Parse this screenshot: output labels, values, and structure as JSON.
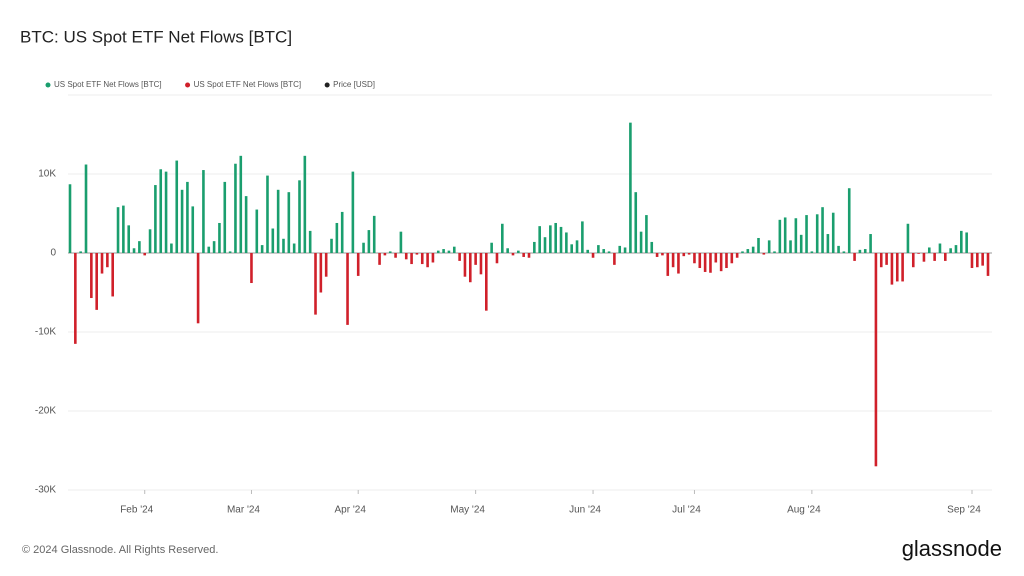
{
  "chart_data": {
    "type": "bar",
    "title": "BTC: US Spot ETF Net Flows [BTC]",
    "footer": "© 2024 Glassnode. All Rights Reserved.",
    "brand": "glassnode",
    "legend": [
      {
        "name": "US Spot ETF Net Flows [BTC]",
        "color": "#1a9e6e"
      },
      {
        "name": "US Spot ETF Net Flows [BTC]",
        "color": "#d0202a"
      },
      {
        "name": "Price [USD]",
        "color": "#222222"
      }
    ],
    "positive_color": "#1a9e6e",
    "negative_color": "#d0202a",
    "values": [
      8700,
      -11500,
      200,
      11200,
      -5700,
      -7200,
      -2600,
      -1800,
      -5500,
      5800,
      6000,
      3500,
      600,
      1500,
      -300,
      3000,
      8600,
      10600,
      10300,
      1200,
      11700,
      8000,
      9000,
      5900,
      -8900,
      10500,
      800,
      1500,
      3800,
      9000,
      200,
      11300,
      12300,
      7200,
      -3800,
      5500,
      1000,
      9800,
      3100,
      8000,
      1800,
      7700,
      1200,
      9200,
      12300,
      2800,
      -7800,
      -5000,
      -3000,
      1800,
      3800,
      5200,
      -9100,
      10300,
      -2900,
      1300,
      2900,
      4700,
      -1500,
      -300,
      200,
      -600,
      2700,
      -800,
      -1400,
      -200,
      -1400,
      -1800,
      -1200,
      300,
      500,
      300,
      800,
      -1000,
      -3000,
      -3700,
      -1500,
      -2700,
      -7300,
      1300,
      -1300,
      3700,
      600,
      -300,
      300,
      -500,
      -600,
      1400,
      3400,
      2000,
      3500,
      3800,
      3300,
      2600,
      1100,
      1600,
      4000,
      400,
      -600,
      1000,
      500,
      200,
      -1500,
      900,
      700,
      16500,
      7700,
      2700,
      4800,
      1400,
      -500,
      -300,
      -2900,
      -1800,
      -2600,
      -400,
      -200,
      -1300,
      -1900,
      -2400,
      -2500,
      -1200,
      -2300,
      -1900,
      -1300,
      -600,
      200,
      500,
      800,
      1900,
      -200,
      1600,
      200,
      4200,
      4500,
      1600,
      4400,
      2300,
      4800,
      200,
      4900,
      5800,
      2400,
      5100,
      900,
      200,
      8200,
      -1000,
      400,
      500,
      2400,
      -27000,
      -1800,
      -1500,
      -4000,
      -3600,
      -3600,
      3700,
      -1800,
      -100,
      -1100,
      700,
      -1000,
      1200,
      -1000,
      600,
      1000,
      2800,
      2600,
      -1900,
      -1800,
      -1600,
      -2900
    ],
    "ylim": [
      -30000,
      20000
    ],
    "yticks": [
      {
        "value": -30000,
        "label": "-30K"
      },
      {
        "value": -20000,
        "label": "-20K"
      },
      {
        "value": -10000,
        "label": "-10K"
      },
      0,
      {
        "value": 10000,
        "label": "10K"
      }
    ],
    "xticks": [
      {
        "value": 14,
        "label": "Feb '24"
      },
      {
        "value": 34,
        "label": "Mar '24"
      },
      {
        "value": 54,
        "label": "Apr '24"
      },
      {
        "value": 76,
        "label": "May '24"
      },
      {
        "value": 98,
        "label": "Jun '24"
      },
      {
        "value": 117,
        "label": "Jul '24"
      },
      {
        "value": 139,
        "label": "Aug '24"
      },
      {
        "value": 169,
        "label": "Sep '24"
      }
    ],
    "grid": true
  }
}
